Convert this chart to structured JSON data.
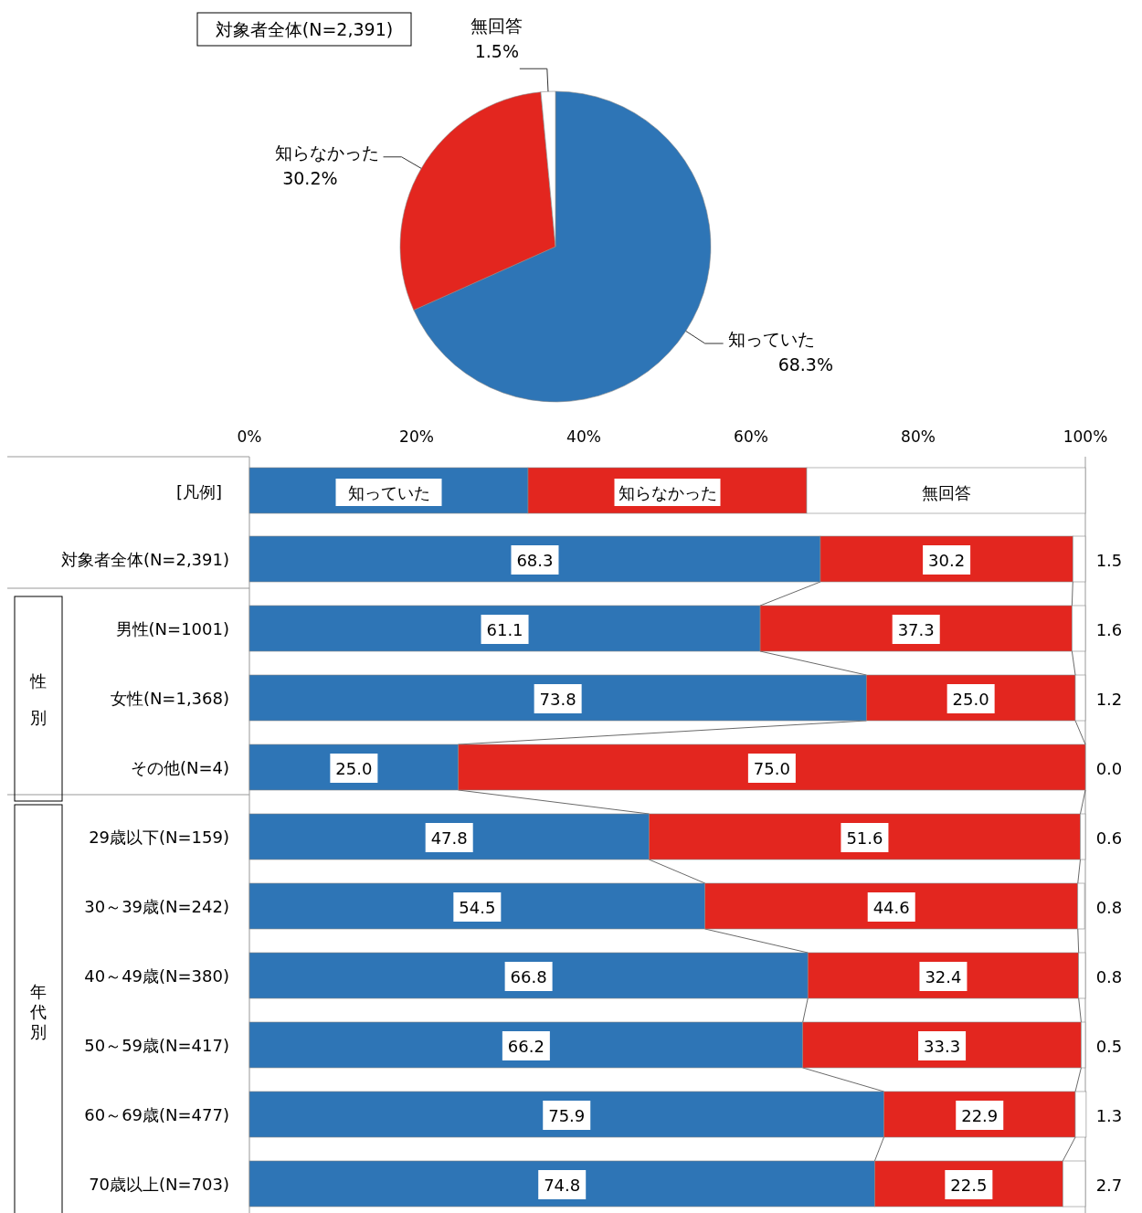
{
  "chart_data": [
    {
      "type": "pie",
      "title": "対象者全体(N=2,391)",
      "categories": [
        "知っていた",
        "知らなかった",
        "無回答"
      ],
      "values": [
        68.3,
        30.2,
        1.5
      ],
      "value_labels": [
        "68.3%",
        "30.2%",
        "1.5%"
      ],
      "colors": [
        "#2e75b6",
        "#e3261f",
        "#ffffff"
      ]
    },
    {
      "type": "bar",
      "orientation": "horizontal",
      "stacked": true,
      "legend": "top",
      "legend_title": "[凡例]",
      "xlim": [
        0,
        100
      ],
      "xticks": [
        {
          "value": 0,
          "label": "0%"
        },
        {
          "value": 20,
          "label": "20%"
        },
        {
          "value": 40,
          "label": "40%"
        },
        {
          "value": 60,
          "label": "60%"
        },
        {
          "value": 80,
          "label": "80%"
        },
        {
          "value": 100,
          "label": "100%"
        }
      ],
      "categories": [
        "対象者全体(N=2,391)",
        "男性(N=1001)",
        "女性(N=1,368)",
        "その他(N=4)",
        "29歳以下(N=159)",
        "30～39歳(N=242)",
        "40～49歳(N=380)",
        "50～59歳(N=417)",
        "60～69歳(N=477)",
        "70歳以上(N=703)"
      ],
      "annotations": [
        "性別",
        "年代別"
      ],
      "series": [
        {
          "name": "知っていた",
          "color": "#2e75b6",
          "values": [
            68.3,
            61.1,
            73.8,
            25.0,
            47.8,
            54.5,
            66.8,
            66.2,
            75.9,
            74.8
          ],
          "value_labels": [
            "68.3",
            "61.1",
            "73.8",
            "25.0",
            "47.8",
            "54.5",
            "66.8",
            "66.2",
            "75.9",
            "74.8"
          ]
        },
        {
          "name": "知らなかった",
          "color": "#e3261f",
          "values": [
            30.2,
            37.3,
            25.0,
            75.0,
            51.6,
            44.6,
            32.4,
            33.3,
            22.9,
            22.5
          ],
          "value_labels": [
            "30.2",
            "37.3",
            "25.0",
            "75.0",
            "51.6",
            "44.6",
            "32.4",
            "33.3",
            "22.9",
            "22.5"
          ]
        },
        {
          "name": "無回答",
          "color": "#ffffff",
          "values": [
            1.5,
            1.6,
            1.2,
            0.0,
            0.6,
            0.8,
            0.8,
            0.5,
            1.3,
            2.7
          ],
          "value_labels": [
            "1.5",
            "1.6",
            "1.2",
            "0.0",
            "0.6",
            "0.8",
            "0.8",
            "0.5",
            "1.3",
            "2.7"
          ]
        }
      ]
    }
  ]
}
